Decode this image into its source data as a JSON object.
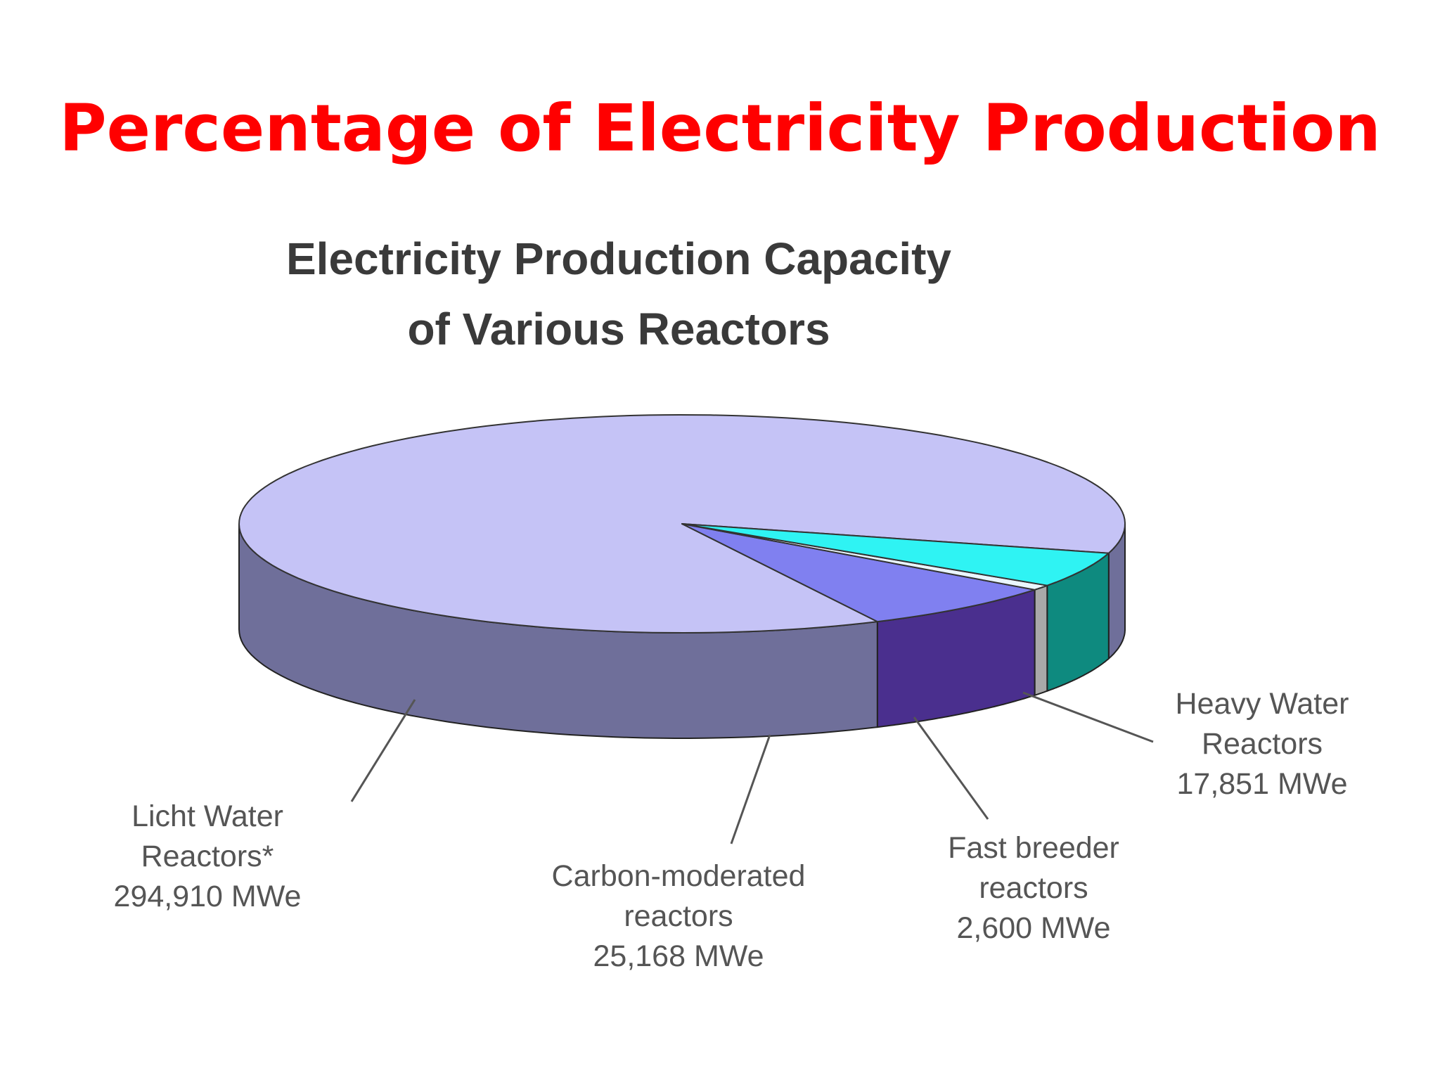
{
  "slide": {
    "title": "Percentage of Electricity Production"
  },
  "chart_data": {
    "type": "pie",
    "title_lines": [
      "Electricity Production Capacity",
      "of Various Reactors"
    ],
    "units": "MWe",
    "slices": [
      {
        "key": "light",
        "label_lines": [
          "Licht Water",
          "Reactors*"
        ],
        "value": 294910,
        "value_text": "294,910 MWe",
        "color": "#c5c3f6",
        "side_color": "#6f6f9a"
      },
      {
        "key": "carbon",
        "label_lines": [
          "Carbon-moderated",
          "reactors"
        ],
        "value": 25168,
        "value_text": "25,168 MWe",
        "color": "#8080f0",
        "side_color": "#4a2f8e"
      },
      {
        "key": "fast",
        "label_lines": [
          "Fast breeder",
          "reactors"
        ],
        "value": 2600,
        "value_text": "2,600 MWe",
        "color": "#eaf6ff",
        "side_color": "#a9a9a9"
      },
      {
        "key": "heavy",
        "label_lines": [
          "Heavy Water",
          "Reactors"
        ],
        "value": 17851,
        "value_text": "17,851 MWe",
        "color": "#2ff3f3",
        "side_color": "#0e8a7f"
      }
    ]
  }
}
